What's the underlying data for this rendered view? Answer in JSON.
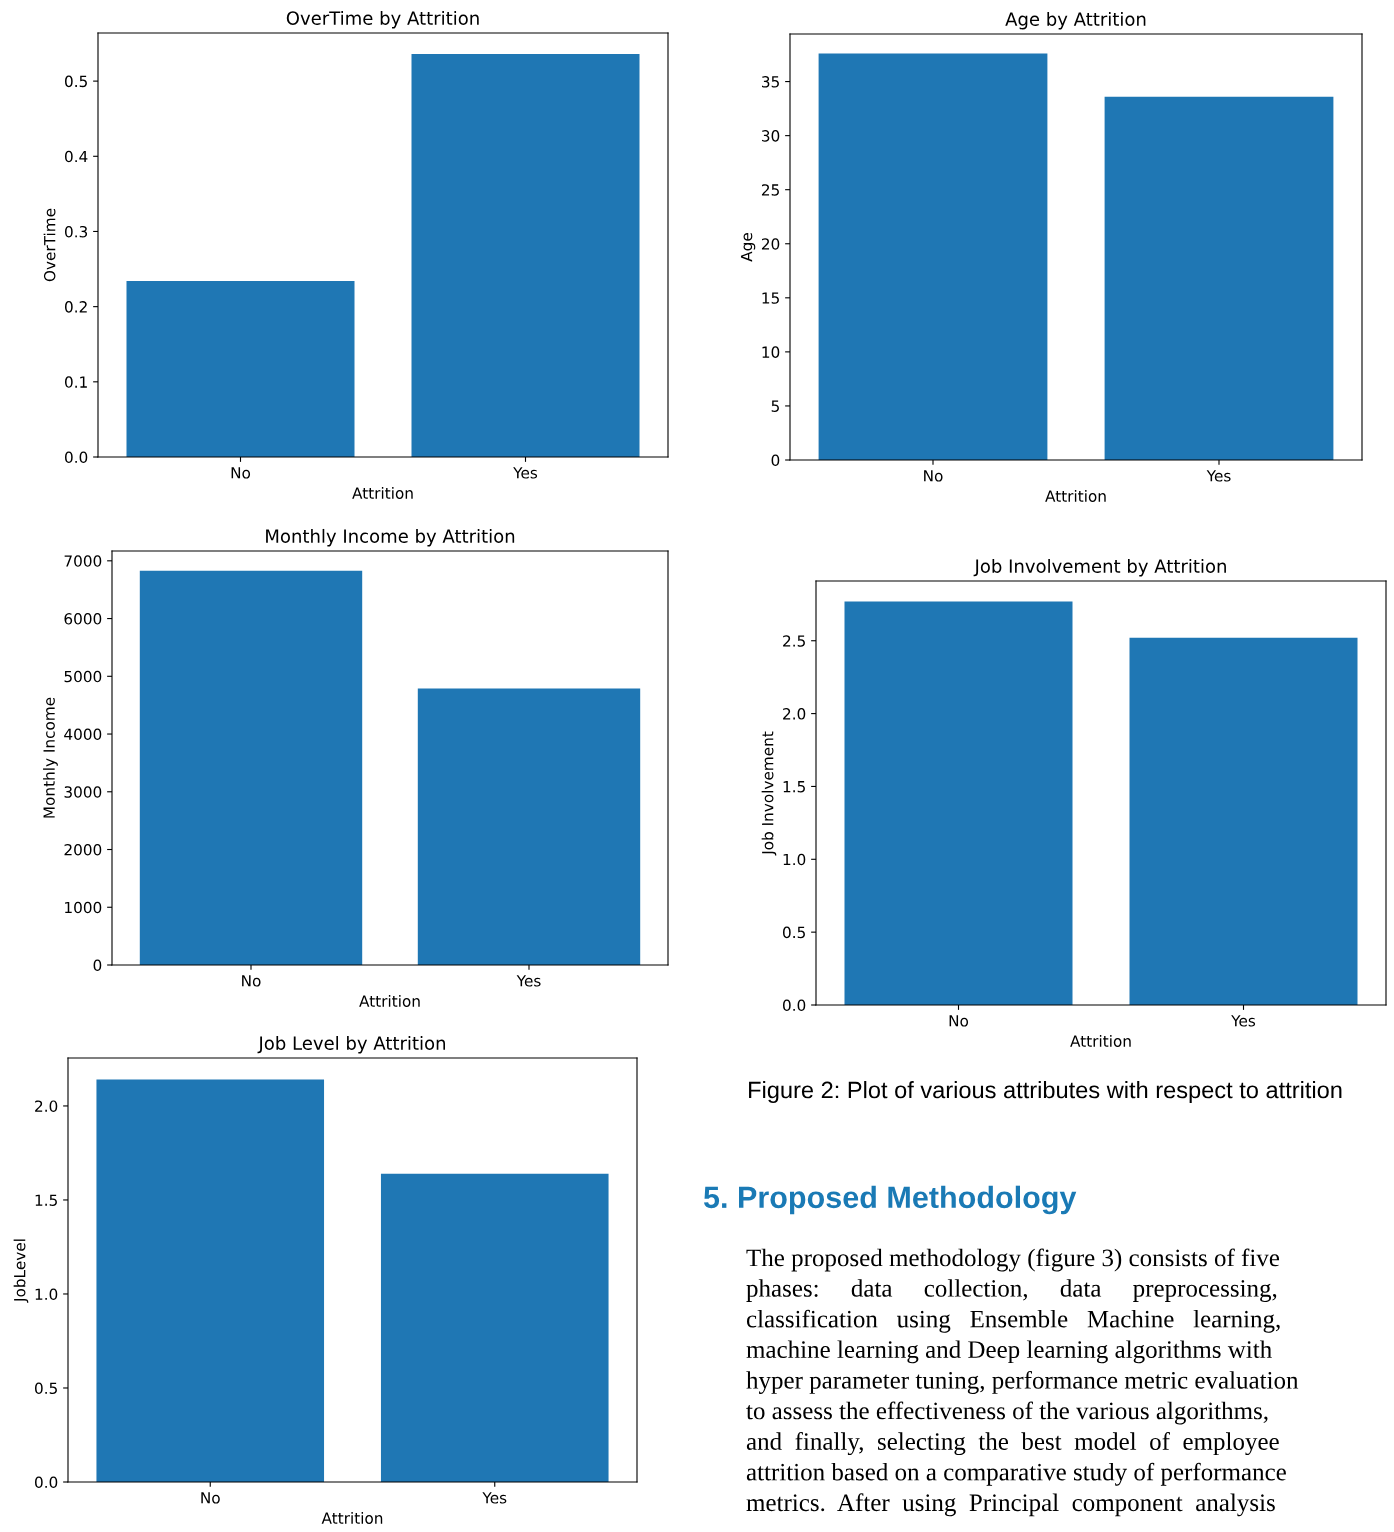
{
  "chart_data": [
    {
      "type": "bar",
      "title": "OverTime by Attrition",
      "xlabel": "Attrition",
      "ylabel": "OverTime",
      "categories": [
        "No",
        "Yes"
      ],
      "values": [
        0.234,
        0.536
      ],
      "color": "#1f77b4",
      "ylim": [
        0,
        0.564
      ],
      "yticks": [
        {
          "value": 0,
          "label": "0.0"
        },
        0.1,
        0.2,
        0.3,
        0.4,
        0.5
      ],
      "grid": false
    },
    {
      "type": "bar",
      "title": "Age by Attrition",
      "xlabel": "Attrition",
      "ylabel": "Age",
      "categories": [
        "No",
        "Yes"
      ],
      "values": [
        37.6,
        33.6
      ],
      "color": "#1f77b4",
      "ylim": [
        0,
        39.4
      ],
      "yticks": [
        0,
        5,
        10,
        15,
        20,
        25,
        30,
        35
      ],
      "grid": false
    },
    {
      "type": "bar",
      "title": "Monthly Income by Attrition",
      "xlabel": "Attrition",
      "ylabel": "Monthly Income",
      "categories": [
        "No",
        "Yes"
      ],
      "values": [
        6830,
        4790
      ],
      "color": "#1f77b4",
      "ylim": [
        0,
        7170
      ],
      "yticks": [
        0,
        1000,
        2000,
        3000,
        4000,
        5000,
        6000,
        7000
      ],
      "grid": false
    },
    {
      "type": "bar",
      "title": "Job Involvement by Attrition",
      "xlabel": "Attrition",
      "ylabel": "Job Involvement",
      "categories": [
        "No",
        "Yes"
      ],
      "values": [
        2.77,
        2.52
      ],
      "color": "#1f77b4",
      "ylim": [
        0,
        2.91
      ],
      "yticks": [
        {
          "value": 0,
          "label": "0.0"
        },
        0.5,
        {
          "value": 1,
          "label": "1.0"
        },
        1.5,
        {
          "value": 2,
          "label": "2.0"
        },
        2.5
      ],
      "grid": false
    },
    {
      "type": "bar",
      "title": "Job Level by Attrition",
      "xlabel": "Attrition",
      "ylabel": "JobLevel",
      "categories": [
        "No",
        "Yes"
      ],
      "values": [
        2.14,
        1.64
      ],
      "color": "#1f77b4",
      "ylim": [
        0,
        2.255
      ],
      "yticks": [
        {
          "value": 0,
          "label": "0.0"
        },
        0.5,
        {
          "value": 1,
          "label": "1.0"
        },
        1.5,
        {
          "value": 2,
          "label": "2.0"
        }
      ],
      "grid": false
    },
    {
      "type": "other",
      "annotations": [
        "Figure 2: Plot of various attributes with respect to attrition",
        "5. Proposed Methodology",
        "The proposed methodology (figure 3) consists of five",
        "phases:     data     collection,     data     preprocessing,",
        "classification   using   Ensemble   Machine   learning,",
        "machine learning and Deep learning algorithms with",
        "hyper parameter tuning, performance metric evaluation",
        "to assess the effectiveness of the various algorithms,",
        "and  finally,  selecting  the  best  model  of  employee",
        "attrition based on a comparative study of performance",
        "metrics.  After  using  Principal  component  analysis"
      ]
    }
  ]
}
